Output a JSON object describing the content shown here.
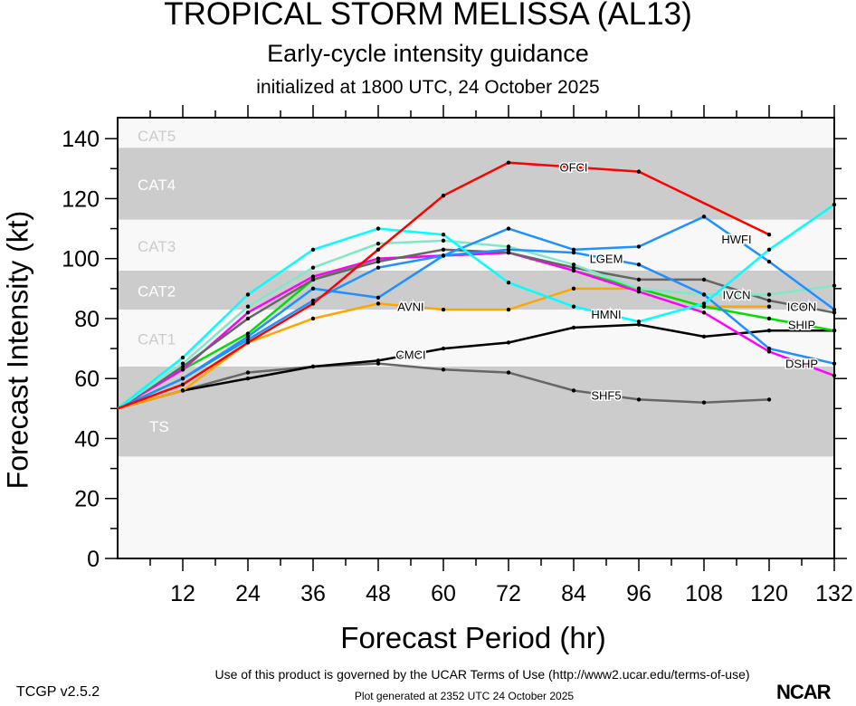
{
  "header": {
    "title": "TROPICAL STORM MELISSA (AL13)",
    "subtitle": "Early-cycle intensity guidance",
    "init": "initialized at 1800 UTC, 24 October 2025"
  },
  "footer": {
    "terms": "Use of this product is governed by the UCAR Terms of Use (http://www2.ucar.edu/terms-of-use)",
    "generated": "Plot generated at 2352 UTC   24 October 2025",
    "version": "TCGP v2.5.2",
    "logo": "NCAR"
  },
  "chart_data": {
    "type": "line",
    "title": "TROPICAL STORM MELISSA (AL13)",
    "xlabel": "Forecast Period (hr)",
    "ylabel": "Forecast Intensity (kt)",
    "xlim": [
      0,
      132
    ],
    "ylim": [
      0,
      147
    ],
    "xticks": [
      12,
      24,
      36,
      48,
      60,
      72,
      84,
      96,
      108,
      120,
      132
    ],
    "yticks": [
      0,
      20,
      40,
      60,
      80,
      100,
      120,
      140
    ],
    "bands": [
      {
        "label": "TS",
        "min": 34,
        "max": 64,
        "color": "#cccccc"
      },
      {
        "label": "CAT1",
        "min": 64,
        "max": 83,
        "color": "#f8f8f8"
      },
      {
        "label": "CAT2",
        "min": 83,
        "max": 96,
        "color": "#cccccc"
      },
      {
        "label": "CAT3",
        "min": 96,
        "max": 113,
        "color": "#f8f8f8"
      },
      {
        "label": "CAT4",
        "min": 113,
        "max": 137,
        "color": "#cccccc"
      },
      {
        "label": "CAT5",
        "min": 137,
        "max": 147,
        "color": "#f8f8f8"
      }
    ],
    "series": [
      {
        "name": "SHF5",
        "color": "#666666",
        "x": [
          0,
          12,
          24,
          36,
          48,
          60,
          72,
          84,
          96,
          108,
          120
        ],
        "y": [
          50,
          56,
          62,
          64,
          65,
          63,
          62,
          56,
          53,
          52,
          53
        ]
      },
      {
        "name": "CMCI",
        "color": "#000000",
        "x": [
          0,
          12,
          24,
          36,
          48,
          60,
          72,
          84,
          96,
          108,
          120,
          132
        ],
        "y": [
          50,
          56,
          60,
          64,
          66,
          70,
          72,
          77,
          78,
          74,
          76,
          76
        ]
      },
      {
        "name": "AVNI",
        "color": "#ffa500",
        "x": [
          0,
          12,
          24,
          36,
          48,
          60,
          72,
          84,
          96,
          108,
          120
        ],
        "y": [
          50,
          56,
          72,
          80,
          85,
          83,
          83,
          90,
          90,
          84,
          84
        ]
      },
      {
        "name": "SHIP",
        "color": "#00dd00",
        "x": [
          0,
          12,
          24,
          36,
          48,
          60,
          72,
          84,
          96,
          108,
          120,
          132
        ],
        "y": [
          50,
          63,
          75,
          93,
          100,
          101,
          102,
          96,
          90,
          84,
          80,
          76
        ]
      },
      {
        "name": "DSHP",
        "color": "#ff00ff",
        "x": [
          0,
          12,
          24,
          36,
          48,
          60,
          72,
          84,
          96,
          108,
          120,
          132
        ],
        "y": [
          50,
          63,
          82,
          94,
          100,
          101,
          102,
          96,
          89,
          82,
          69,
          61
        ]
      },
      {
        "name": "ICON",
        "color": "#666666",
        "x": [
          0,
          12,
          24,
          36,
          48,
          60,
          72,
          84,
          96,
          108,
          120,
          132
        ],
        "y": [
          50,
          64,
          80,
          93,
          99,
          103,
          102,
          97,
          93,
          93,
          86,
          82
        ]
      },
      {
        "name": "IVCN",
        "color": "#7fe8c8",
        "x": [
          0,
          12,
          24,
          36,
          48,
          60,
          72,
          84,
          96,
          108,
          120,
          132
        ],
        "y": [
          50,
          65,
          84,
          97,
          105,
          106,
          104,
          98,
          90,
          88,
          88,
          91
        ]
      },
      {
        "name": "LGEM",
        "color": "#1e90ff",
        "x": [
          0,
          12,
          24,
          36,
          48,
          60,
          72,
          84,
          96,
          108,
          120,
          132
        ],
        "y": [
          50,
          60,
          73,
          86,
          97,
          101,
          103,
          102,
          98,
          88,
          70,
          65
        ]
      },
      {
        "name": "HWFI",
        "color": "#1e90ff",
        "x": [
          0,
          12,
          24,
          36,
          48,
          60,
          72,
          84,
          96,
          108,
          120,
          132
        ],
        "y": [
          50,
          60,
          74,
          90,
          87,
          101,
          110,
          103,
          104,
          114,
          99,
          83
        ]
      },
      {
        "name": "HMNI",
        "color": "#00ffff",
        "x": [
          0,
          12,
          24,
          36,
          48,
          60,
          72,
          84,
          96,
          108,
          120,
          132
        ],
        "y": [
          50,
          67,
          88,
          103,
          110,
          108,
          92,
          84,
          79,
          85,
          103,
          118
        ]
      },
      {
        "name": "OFCI",
        "color": "#ff0000",
        "x": [
          0,
          12,
          24,
          36,
          48,
          60,
          72,
          96,
          120
        ],
        "y": [
          50,
          58,
          72,
          85,
          103,
          121,
          132,
          129,
          108
        ]
      }
    ]
  }
}
